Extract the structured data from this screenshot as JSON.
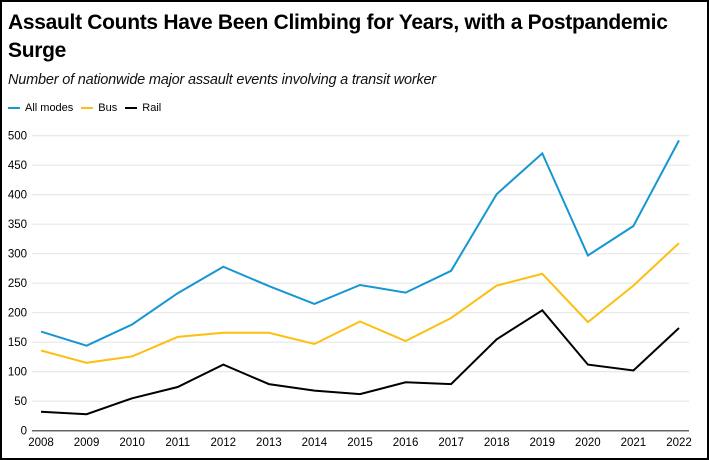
{
  "colors": {
    "all_modes": "#1696d2",
    "bus": "#fdbf11",
    "rail": "#000000",
    "grid": "#e6e6e6",
    "axis": "#666666"
  },
  "chart_data": {
    "type": "line",
    "title": "Assault Counts Have Been Climbing for Years, with a Postpandemic Surge",
    "subtitle": "Number of nationwide major assault events involving a transit worker",
    "xlabel": "",
    "ylabel": "",
    "x": [
      "2008",
      "2009",
      "2010",
      "2011",
      "2012",
      "2013",
      "2014",
      "2015",
      "2016",
      "2017",
      "2018",
      "2019",
      "2020",
      "2021",
      "2022"
    ],
    "ylim": [
      0,
      500
    ],
    "yticks": [
      0,
      50,
      100,
      150,
      200,
      250,
      300,
      350,
      400,
      450,
      500
    ],
    "grid": true,
    "legend_position": "top-left",
    "series": [
      {
        "name": "All modes",
        "key": "all_modes",
        "values": [
          168,
          144,
          180,
          233,
          278,
          245,
          215,
          247,
          234,
          271,
          401,
          470,
          297,
          347,
          492
        ]
      },
      {
        "name": "Bus",
        "key": "bus",
        "values": [
          136,
          115,
          126,
          159,
          166,
          166,
          147,
          185,
          152,
          191,
          246,
          266,
          184,
          246,
          318
        ]
      },
      {
        "name": "Rail",
        "key": "rail",
        "values": [
          32,
          28,
          55,
          74,
          112,
          79,
          68,
          62,
          82,
          79,
          155,
          204,
          112,
          102,
          174
        ]
      }
    ]
  }
}
